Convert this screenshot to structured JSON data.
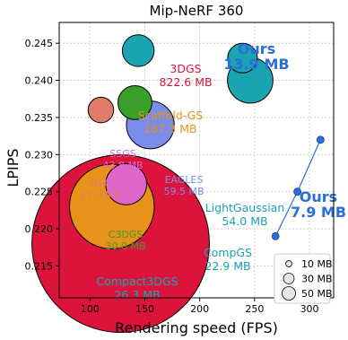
{
  "chart_data": {
    "type": "scatter",
    "title": "Mip-NeRF 360",
    "xlabel": "Rendering speed (FPS)",
    "ylabel": "LPIPS",
    "xlim": [
      72,
      322
    ],
    "ylim": [
      0.2478,
      0.2107
    ],
    "y_inverted": true,
    "x_ticks": [
      100,
      150,
      200,
      250,
      300
    ],
    "y_ticks": [
      0.215,
      0.22,
      0.225,
      0.23,
      0.235,
      0.24,
      0.245
    ],
    "grid": true,
    "points": [
      {
        "name": "3DGS",
        "size_label": "822.6 MB",
        "size_mb": 822.6,
        "x": 128,
        "y": 0.218,
        "color": "#dc143c"
      },
      {
        "name": "Scaffold-GS",
        "size_label": "187.3 MB",
        "size_mb": 187.3,
        "x": 120,
        "y": 0.223,
        "color": "#e8921a"
      },
      {
        "name": "SSGS",
        "size_label": "43.8 MB",
        "size_mb": 43.8,
        "x": 133,
        "y": 0.226,
        "color": "#e066cc"
      },
      {
        "name": "EAGLES",
        "size_label": "59.5 MB",
        "size_mb": 59.5,
        "x": 155,
        "y": 0.234,
        "color": "#7b8cea"
      },
      {
        "name": "HAC",
        "size_label": "17.0 MB",
        "size_mb": 17.0,
        "x": 110,
        "y": 0.236,
        "color": "#e07a6a"
      },
      {
        "name": "C3DGS",
        "size_label": "30.0 MB",
        "size_mb": 30.0,
        "x": 141,
        "y": 0.237,
        "color": "#3aa02a"
      },
      {
        "name": "LightGaussian",
        "size_label": "54.0 MB",
        "size_mb": 54.0,
        "x": 246,
        "y": 0.24,
        "color": "#1aa3b0"
      },
      {
        "name": "CompGS",
        "size_label": "22.9 MB",
        "size_mb": 22.9,
        "x": 239,
        "y": 0.243,
        "color": "#1aa3b0"
      },
      {
        "name": "Compact3DGS",
        "size_label": "26.3 MB",
        "size_mb": 26.3,
        "x": 144,
        "y": 0.244,
        "color": "#1aa3b0"
      }
    ],
    "ours_series": {
      "color": "#2a6fdb",
      "points": [
        {
          "x": 269,
          "y": 0.219
        },
        {
          "x": 289,
          "y": 0.225
        },
        {
          "x": 310,
          "y": 0.232
        }
      ],
      "labels": [
        {
          "name": "Ours",
          "size_label": "13.9 MB"
        },
        {
          "name": "Ours",
          "size_label": "7.9 MB"
        }
      ]
    },
    "legend": {
      "placement": "bottom-right",
      "entries": [
        {
          "label": "10 MB",
          "size_mb": 10
        },
        {
          "label": "30 MB",
          "size_mb": 30
        },
        {
          "label": "50 MB",
          "size_mb": 50
        }
      ]
    }
  }
}
